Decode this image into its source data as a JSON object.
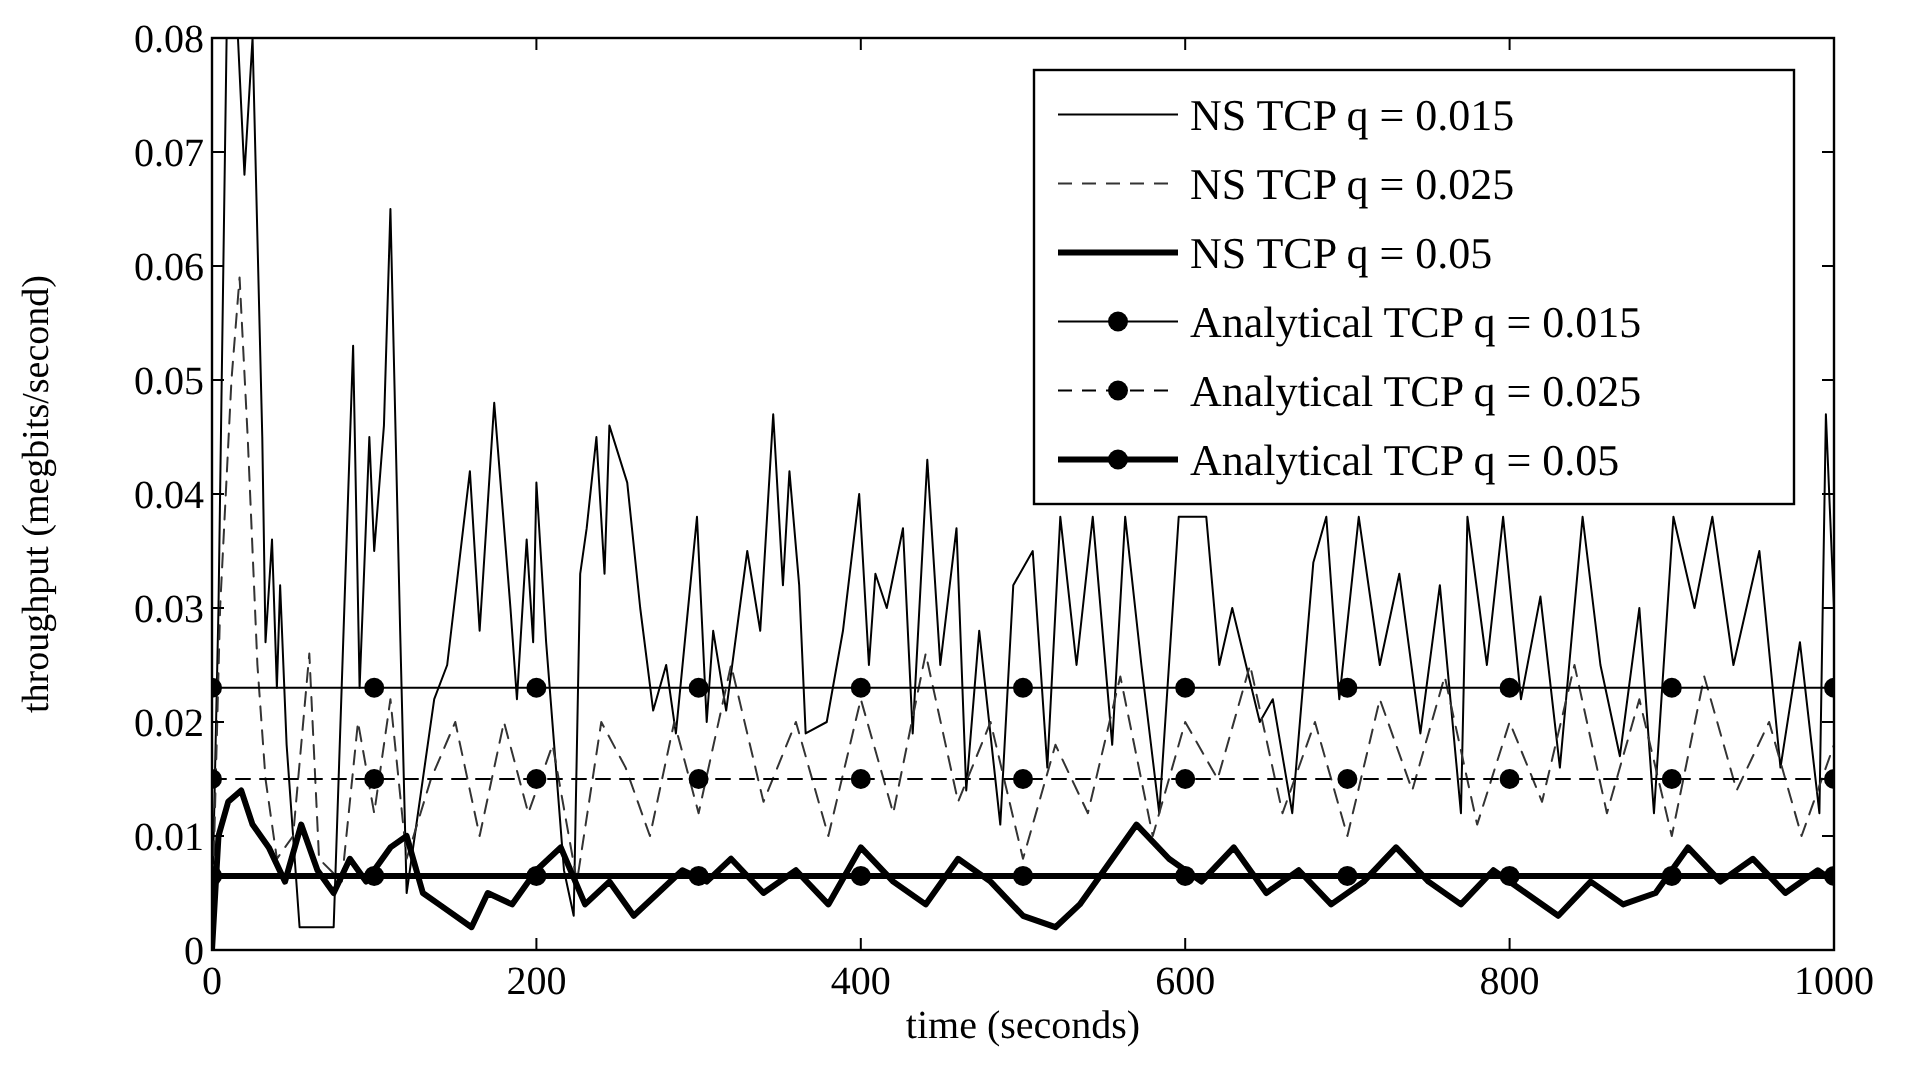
{
  "chart_data": {
    "type": "line",
    "xlabel": "time (seconds)",
    "ylabel": "throughput (megbits/second)",
    "xlim": [
      0,
      1000
    ],
    "ylim": [
      0,
      0.08
    ],
    "xticks": [
      0,
      200,
      400,
      600,
      800,
      1000
    ],
    "yticks": [
      0,
      0.01,
      0.02,
      0.03,
      0.04,
      0.05,
      0.06,
      0.07,
      0.08
    ],
    "grid": false,
    "legend": "top right",
    "series": [
      {
        "name": "NS TCP q = 0.015",
        "color": "#000000",
        "line_style": "solid",
        "marker": "none",
        "x": [
          0,
          4,
          9,
          16,
          20,
          25,
          31,
          33,
          37,
          40,
          42,
          46,
          54,
          62,
          75,
          87,
          91,
          97,
          100,
          106,
          110,
          116,
          120,
          137,
          145,
          159,
          165,
          174,
          184,
          188,
          194,
          198,
          200,
          206,
          217,
          223,
          227,
          231,
          237,
          242,
          245,
          256,
          264,
          272,
          280,
          286,
          299,
          305,
          309,
          317,
          330,
          338,
          346,
          352,
          356,
          362,
          366,
          379,
          389,
          399,
          405,
          409,
          416,
          426,
          432,
          441,
          449,
          459,
          465,
          473,
          486,
          494,
          506,
          515,
          523,
          533,
          543,
          555,
          563,
          573,
          584,
          596,
          613,
          621,
          629,
          646,
          654,
          666,
          679,
          687,
          695,
          707,
          720,
          732,
          745,
          757,
          770,
          774,
          786,
          796,
          807,
          819,
          831,
          845,
          856,
          868,
          880,
          889,
          901,
          914,
          925,
          938,
          954,
          967,
          979,
          991,
          995,
          1000
        ],
        "values": [
          0.003,
          0.03,
          0.08,
          0.08,
          0.068,
          0.08,
          0.045,
          0.027,
          0.036,
          0.023,
          0.032,
          0.018,
          0.002,
          0.002,
          0.002,
          0.053,
          0.023,
          0.045,
          0.035,
          0.046,
          0.065,
          0.028,
          0.005,
          0.022,
          0.025,
          0.042,
          0.028,
          0.048,
          0.03,
          0.022,
          0.036,
          0.027,
          0.041,
          0.027,
          0.007,
          0.003,
          0.033,
          0.037,
          0.045,
          0.033,
          0.046,
          0.041,
          0.03,
          0.021,
          0.025,
          0.019,
          0.038,
          0.02,
          0.028,
          0.021,
          0.035,
          0.028,
          0.047,
          0.032,
          0.042,
          0.032,
          0.019,
          0.02,
          0.028,
          0.04,
          0.025,
          0.033,
          0.03,
          0.037,
          0.019,
          0.043,
          0.025,
          0.037,
          0.014,
          0.028,
          0.011,
          0.032,
          0.035,
          0.016,
          0.038,
          0.025,
          0.038,
          0.018,
          0.038,
          0.025,
          0.012,
          0.038,
          0.038,
          0.025,
          0.03,
          0.02,
          0.022,
          0.012,
          0.034,
          0.038,
          0.022,
          0.038,
          0.025,
          0.033,
          0.019,
          0.032,
          0.012,
          0.038,
          0.025,
          0.038,
          0.022,
          0.031,
          0.016,
          0.038,
          0.025,
          0.017,
          0.03,
          0.012,
          0.038,
          0.03,
          0.038,
          0.025,
          0.035,
          0.016,
          0.027,
          0.012,
          0.047,
          0.03
        ]
      },
      {
        "name": "NS TCP q = 0.025",
        "color": "#333333",
        "line_style": "dashed",
        "marker": "none",
        "x": [
          0,
          5,
          12,
          17,
          22,
          28,
          33,
          40,
          50,
          60,
          66,
          80,
          90,
          100,
          110,
          120,
          135,
          150,
          165,
          180,
          195,
          210,
          225,
          240,
          255,
          270,
          285,
          300,
          320,
          340,
          360,
          380,
          400,
          420,
          440,
          460,
          480,
          500,
          520,
          540,
          560,
          580,
          600,
          620,
          640,
          660,
          680,
          700,
          720,
          740,
          760,
          780,
          800,
          820,
          840,
          860,
          880,
          900,
          920,
          940,
          960,
          980,
          1000
        ],
        "values": [
          0.002,
          0.03,
          0.05,
          0.059,
          0.045,
          0.025,
          0.015,
          0.008,
          0.01,
          0.026,
          0.008,
          0.006,
          0.02,
          0.012,
          0.022,
          0.008,
          0.015,
          0.02,
          0.01,
          0.02,
          0.012,
          0.018,
          0.006,
          0.02,
          0.016,
          0.01,
          0.02,
          0.012,
          0.025,
          0.013,
          0.02,
          0.01,
          0.022,
          0.012,
          0.026,
          0.013,
          0.02,
          0.008,
          0.018,
          0.012,
          0.024,
          0.01,
          0.02,
          0.015,
          0.025,
          0.012,
          0.02,
          0.01,
          0.022,
          0.014,
          0.024,
          0.011,
          0.02,
          0.013,
          0.025,
          0.012,
          0.022,
          0.01,
          0.024,
          0.014,
          0.02,
          0.01,
          0.018
        ]
      },
      {
        "name": "NS TCP q = 0.05",
        "color": "#000000",
        "line_style": "solid",
        "marker": "none",
        "x": [
          0,
          4,
          10,
          18,
          25,
          35,
          45,
          55,
          65,
          75,
          85,
          95,
          110,
          120,
          130,
          140,
          160,
          170,
          185,
          200,
          215,
          230,
          245,
          260,
          275,
          290,
          305,
          320,
          340,
          360,
          380,
          400,
          420,
          440,
          460,
          480,
          500,
          520,
          535,
          550,
          570,
          590,
          610,
          630,
          650,
          670,
          690,
          710,
          730,
          750,
          770,
          790,
          810,
          830,
          850,
          870,
          890,
          910,
          930,
          950,
          970,
          990,
          1000
        ],
        "values": [
          0,
          0.01,
          0.013,
          0.014,
          0.011,
          0.009,
          0.006,
          0.011,
          0.007,
          0.005,
          0.008,
          0.006,
          0.009,
          0.01,
          0.005,
          0.004,
          0.002,
          0.005,
          0.004,
          0.007,
          0.009,
          0.004,
          0.006,
          0.003,
          0.005,
          0.007,
          0.006,
          0.008,
          0.005,
          0.007,
          0.004,
          0.009,
          0.006,
          0.004,
          0.008,
          0.006,
          0.003,
          0.002,
          0.004,
          0.007,
          0.011,
          0.008,
          0.006,
          0.009,
          0.005,
          0.007,
          0.004,
          0.006,
          0.009,
          0.006,
          0.004,
          0.007,
          0.005,
          0.003,
          0.006,
          0.004,
          0.005,
          0.009,
          0.006,
          0.008,
          0.005,
          0.007,
          0.006
        ]
      },
      {
        "name": "Analytical TCP q = 0.015",
        "color": "#000000",
        "line_style": "solid",
        "marker": "circle",
        "x": [
          0,
          100,
          200,
          300,
          400,
          500,
          600,
          700,
          800,
          900,
          1000
        ],
        "values": [
          0.023,
          0.023,
          0.023,
          0.023,
          0.023,
          0.023,
          0.023,
          0.023,
          0.023,
          0.023,
          0.023
        ]
      },
      {
        "name": "Analytical TCP q = 0.025",
        "color": "#000000",
        "line_style": "dashed",
        "marker": "circle",
        "x": [
          0,
          100,
          200,
          300,
          400,
          500,
          600,
          700,
          800,
          900,
          1000
        ],
        "values": [
          0.015,
          0.015,
          0.015,
          0.015,
          0.015,
          0.015,
          0.015,
          0.015,
          0.015,
          0.015,
          0.015
        ]
      },
      {
        "name": "Analytical TCP q = 0.05",
        "color": "#000000",
        "line_style": "solid",
        "marker": "circle",
        "x": [
          0,
          100,
          200,
          300,
          400,
          500,
          600,
          700,
          800,
          900,
          1000
        ],
        "values": [
          0.0065,
          0.0065,
          0.0065,
          0.0065,
          0.0065,
          0.0065,
          0.0065,
          0.0065,
          0.0065,
          0.0065,
          0.0065
        ]
      }
    ]
  }
}
